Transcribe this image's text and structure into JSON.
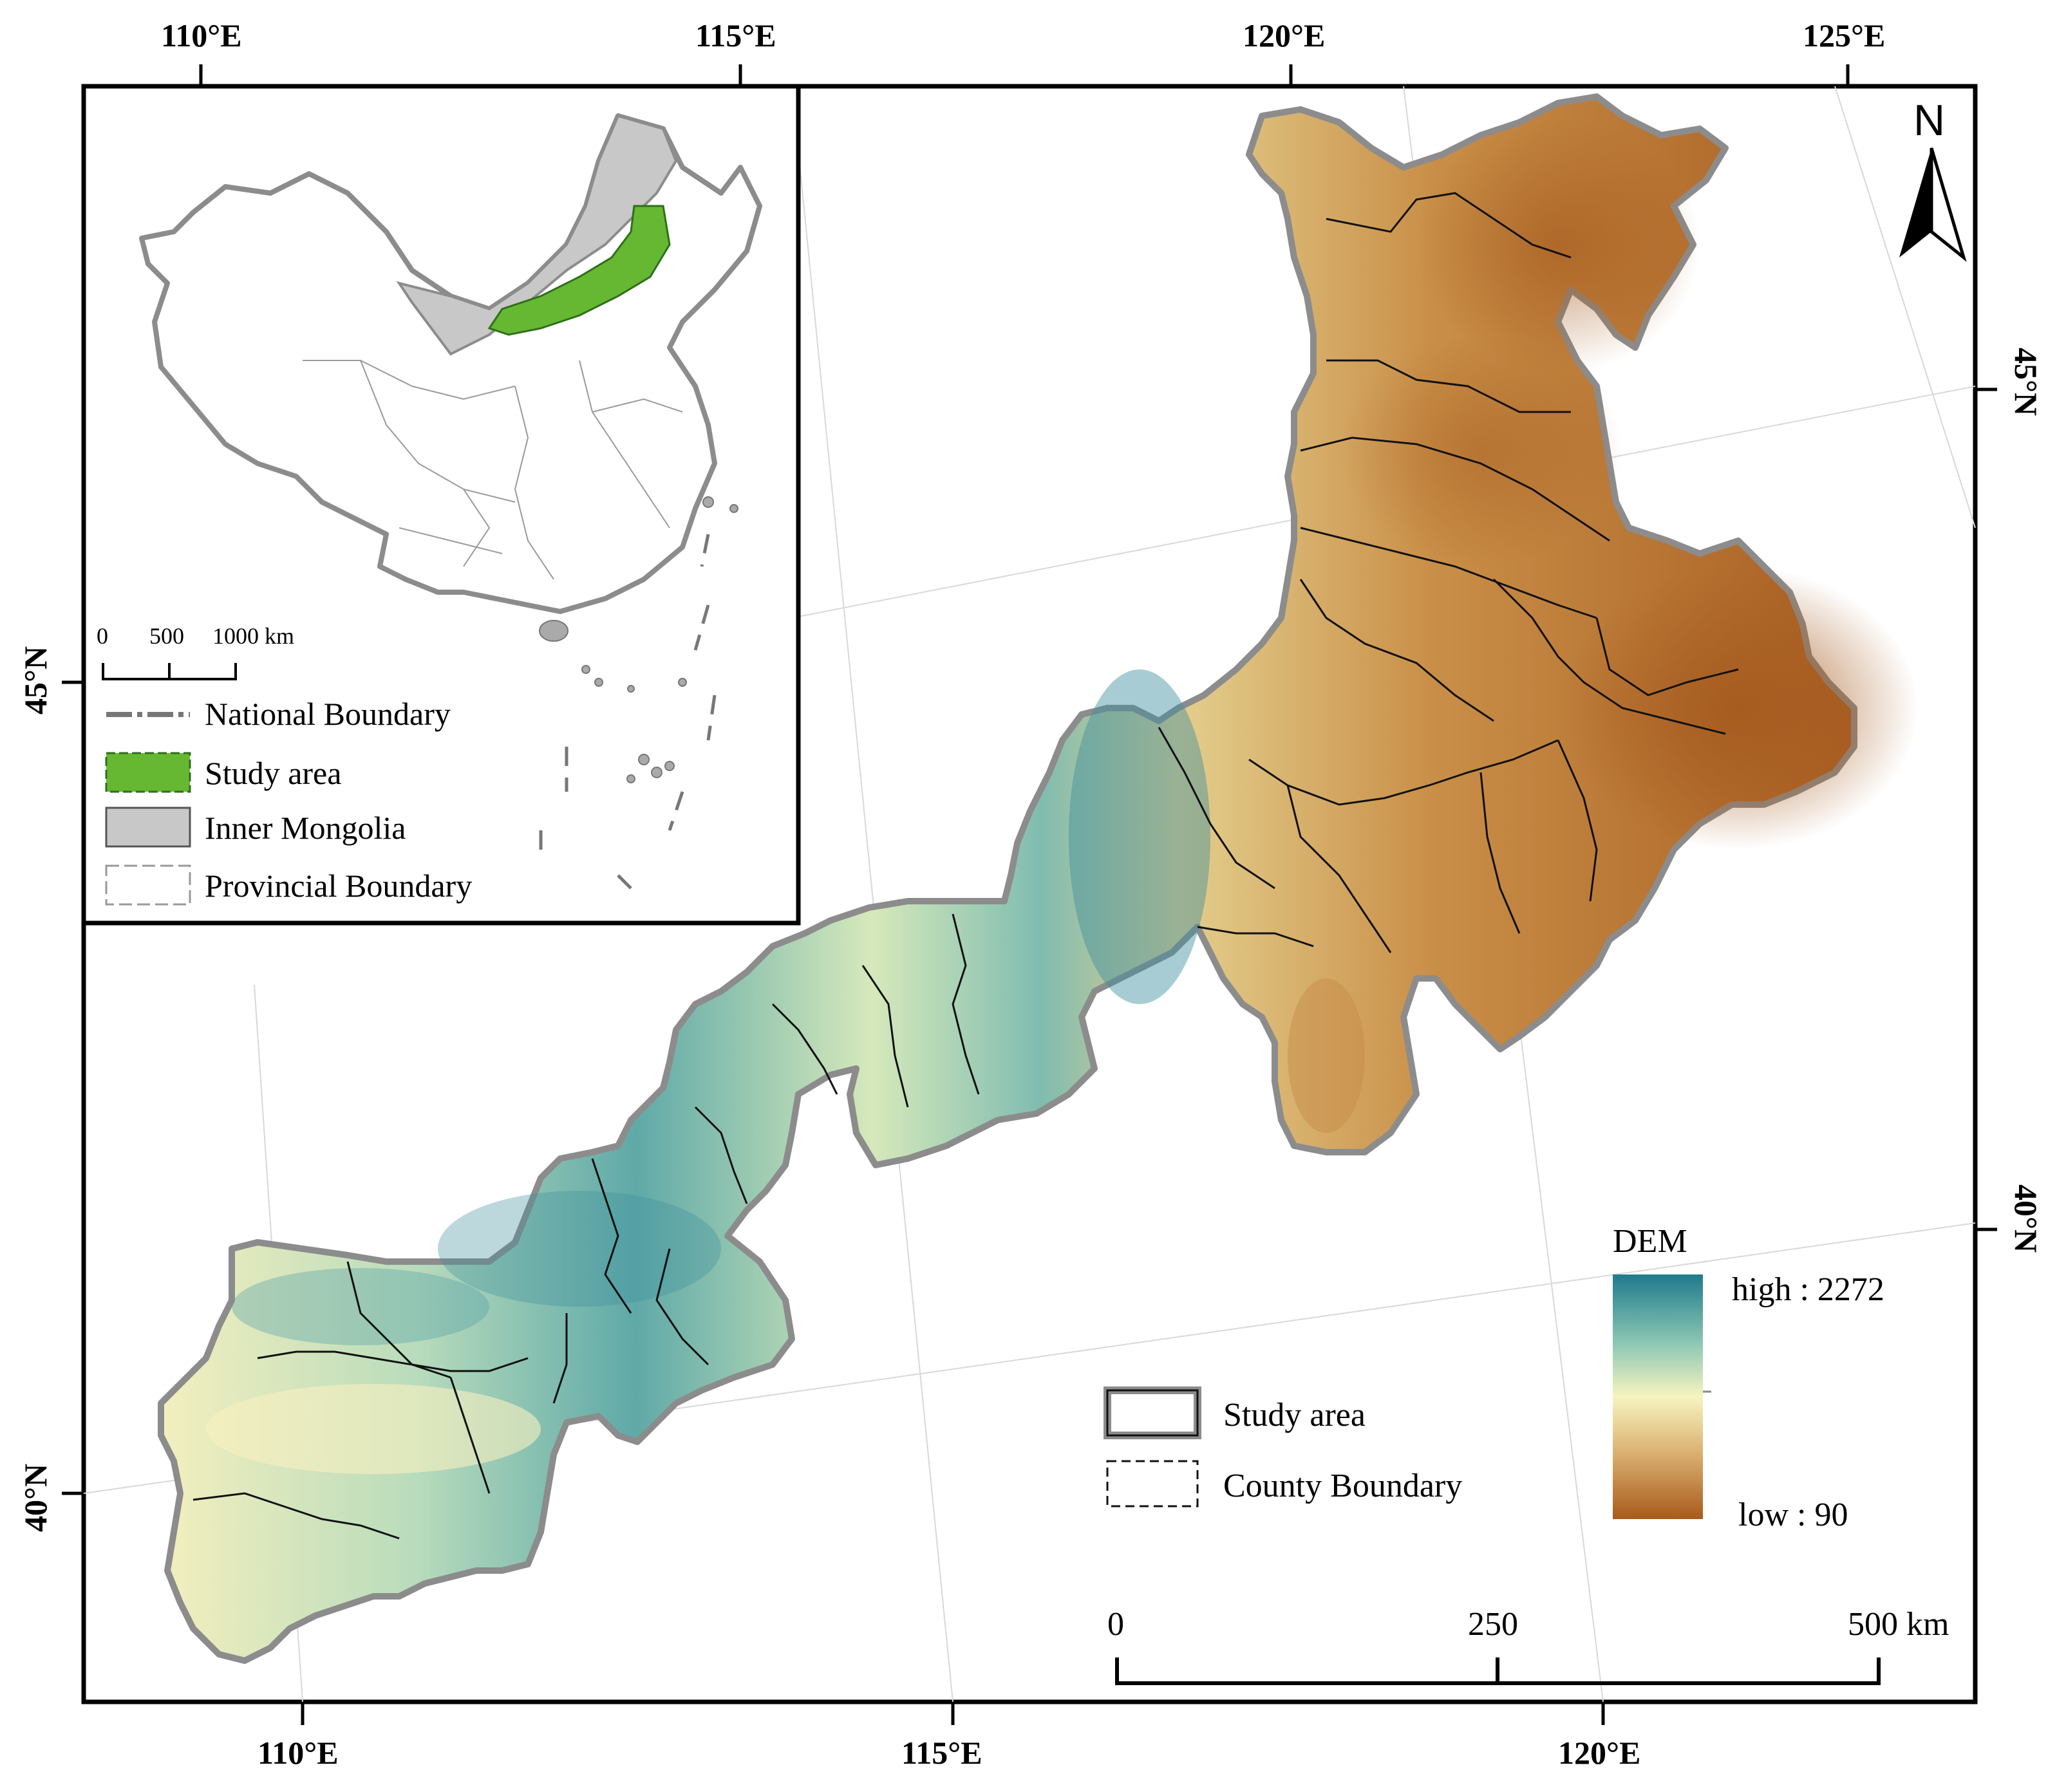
{
  "map": {
    "graticule": {
      "top_longitudes": [
        "110°E",
        "115°E",
        "120°E",
        "125°E"
      ],
      "bottom_longitudes": [
        "110°E",
        "115°E",
        "120°E"
      ],
      "left_latitudes": [
        "45°N",
        "40°N"
      ],
      "right_latitudes": [
        "45°N",
        "40°N"
      ]
    },
    "north_arrow": {
      "label": "N"
    },
    "dem_legend": {
      "title": "DEM",
      "high_label": "high : 2272",
      "low_label": "low : 90"
    },
    "main_legend": {
      "items": [
        {
          "label": "Study area"
        },
        {
          "label": "County Boundary"
        }
      ]
    },
    "scale_bar": {
      "labels": [
        "0",
        "250",
        "500 km"
      ]
    },
    "inset": {
      "scale_bar": {
        "labels": [
          "0",
          "500",
          "1000 km"
        ]
      },
      "legend": [
        {
          "label": "National Boundary"
        },
        {
          "label": "Study area",
          "color": "#66b833"
        },
        {
          "label": "Inner Mongolia",
          "color": "#c8c8c8"
        },
        {
          "label": "Provincial Boundary"
        }
      ]
    },
    "colors": {
      "dem_high": "#1f7a8c",
      "dem_mid": "#f6f4c0",
      "dem_low": "#a85a1c",
      "study_area_boundary": "#8c8c8c"
    }
  }
}
